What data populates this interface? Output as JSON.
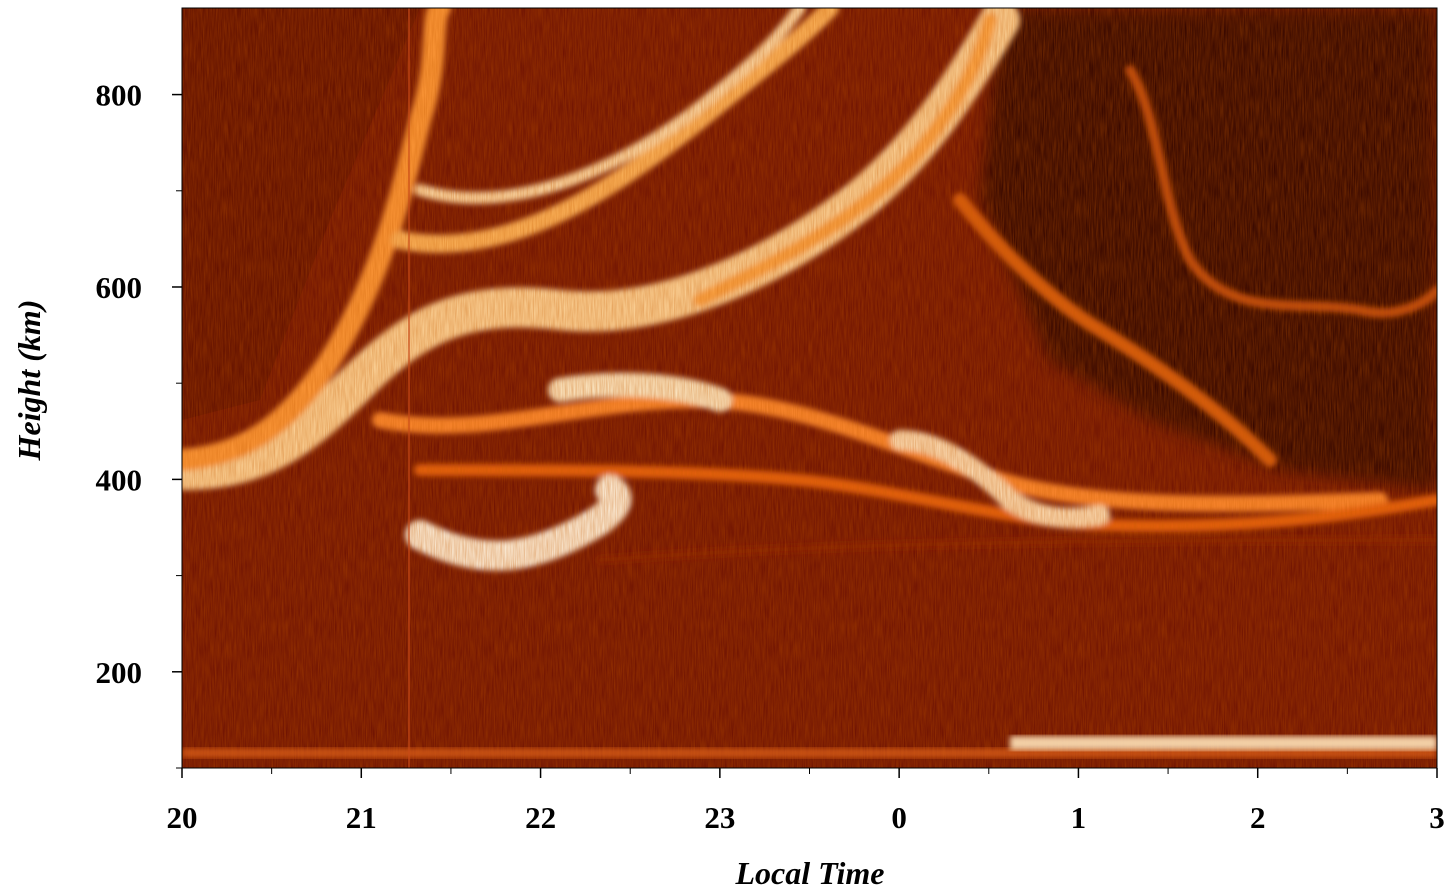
{
  "chart_data": {
    "type": "heatmap",
    "x_label": "Local Time",
    "y_label": "Height (km)",
    "xlim": [
      20,
      27
    ],
    "xticks": [
      20,
      21,
      22,
      23,
      {
        "value": 24,
        "label": "0"
      },
      {
        "value": 25,
        "label": "1"
      },
      {
        "value": 26,
        "label": "2"
      },
      {
        "value": 27,
        "label": "3"
      }
    ],
    "ylim": [
      100,
      890
    ],
    "yticks": [
      200,
      400,
      600,
      800
    ]
  }
}
